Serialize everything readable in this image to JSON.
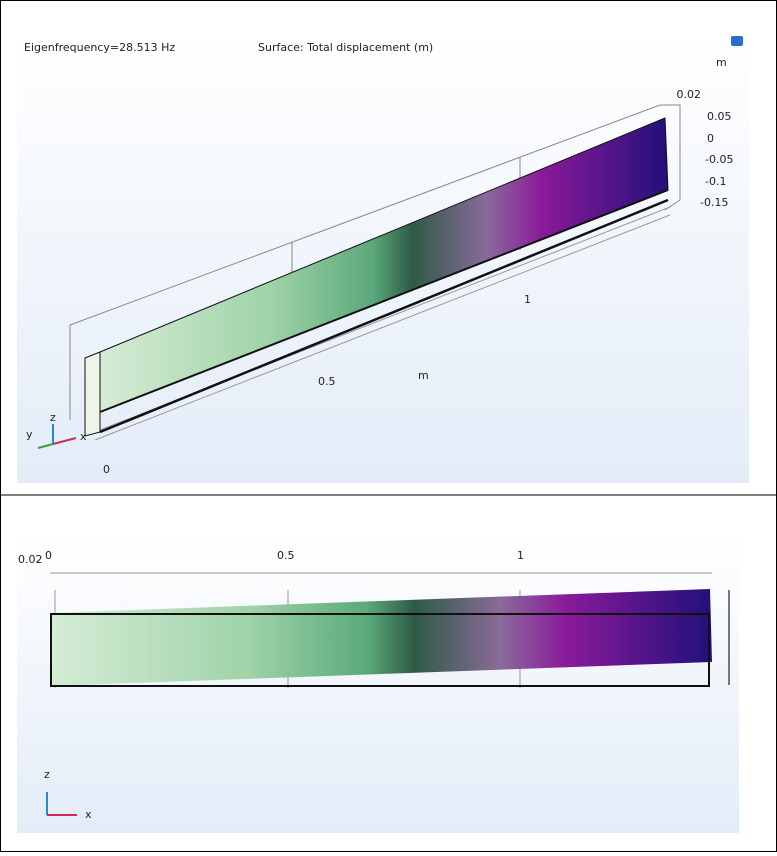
{
  "top_view": {
    "eigenfrequency": "Eigenfrequency=28.513 Hz",
    "surface": "Surface: Total displacement (m)",
    "legend_unit": "m",
    "legend_ticks": [
      "0.02",
      "0.05",
      "0",
      "-0.05",
      "-0.1",
      "-0.15"
    ],
    "axis_ticks": [
      "1",
      "0.5",
      "0"
    ],
    "axis_unit": "m",
    "triad": [
      "z",
      "y",
      "x"
    ]
  },
  "bottom_view": {
    "side_label": "0.02",
    "axis_ticks": [
      "0",
      "0.5",
      "1"
    ],
    "triad": [
      "z",
      "x"
    ]
  }
}
